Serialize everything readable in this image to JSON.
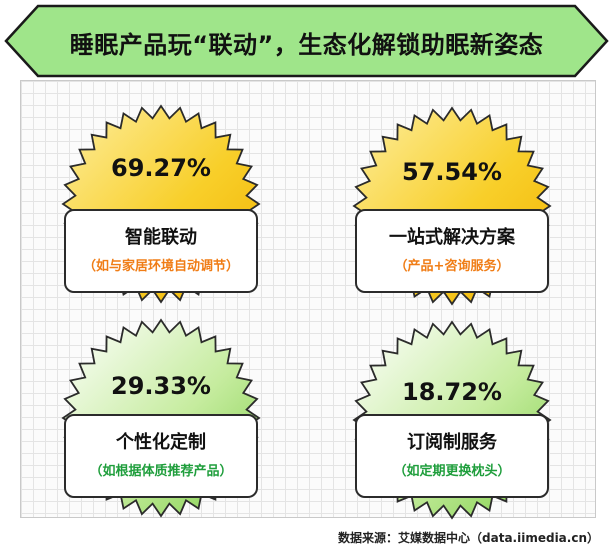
{
  "title": "睡眠产品玩“联动”，生态化解锁助眠新姿态",
  "source": "数据来源：艾媒数据中心（data.iimedia.cn）",
  "colors": {
    "banner": "#9fe58a",
    "orange_start": "#fbe06a",
    "orange_end": "#f5b800",
    "green_start": "#dff5c7",
    "green_end": "#8fd65a"
  },
  "chart_data": {
    "type": "table",
    "categories": [
      "智能联动",
      "一站式解决方案",
      "个性化定制",
      "订阅制服务"
    ],
    "values": [
      69.27,
      57.54,
      29.33,
      18.72
    ],
    "items": [
      {
        "value_label": "69.27%",
        "title": "智能联动",
        "subtitle": "（如与家居环境自动调节）",
        "theme": "orange"
      },
      {
        "value_label": "57.54%",
        "title": "一站式解决方案",
        "subtitle": "（产品+咨询服务）",
        "theme": "orange"
      },
      {
        "value_label": "29.33%",
        "title": "个性化定制",
        "subtitle": "（如根据体质推荐产品）",
        "theme": "green"
      },
      {
        "value_label": "18.72%",
        "title": "订阅制服务",
        "subtitle": "（如定期更换枕头）",
        "theme": "green"
      }
    ]
  }
}
